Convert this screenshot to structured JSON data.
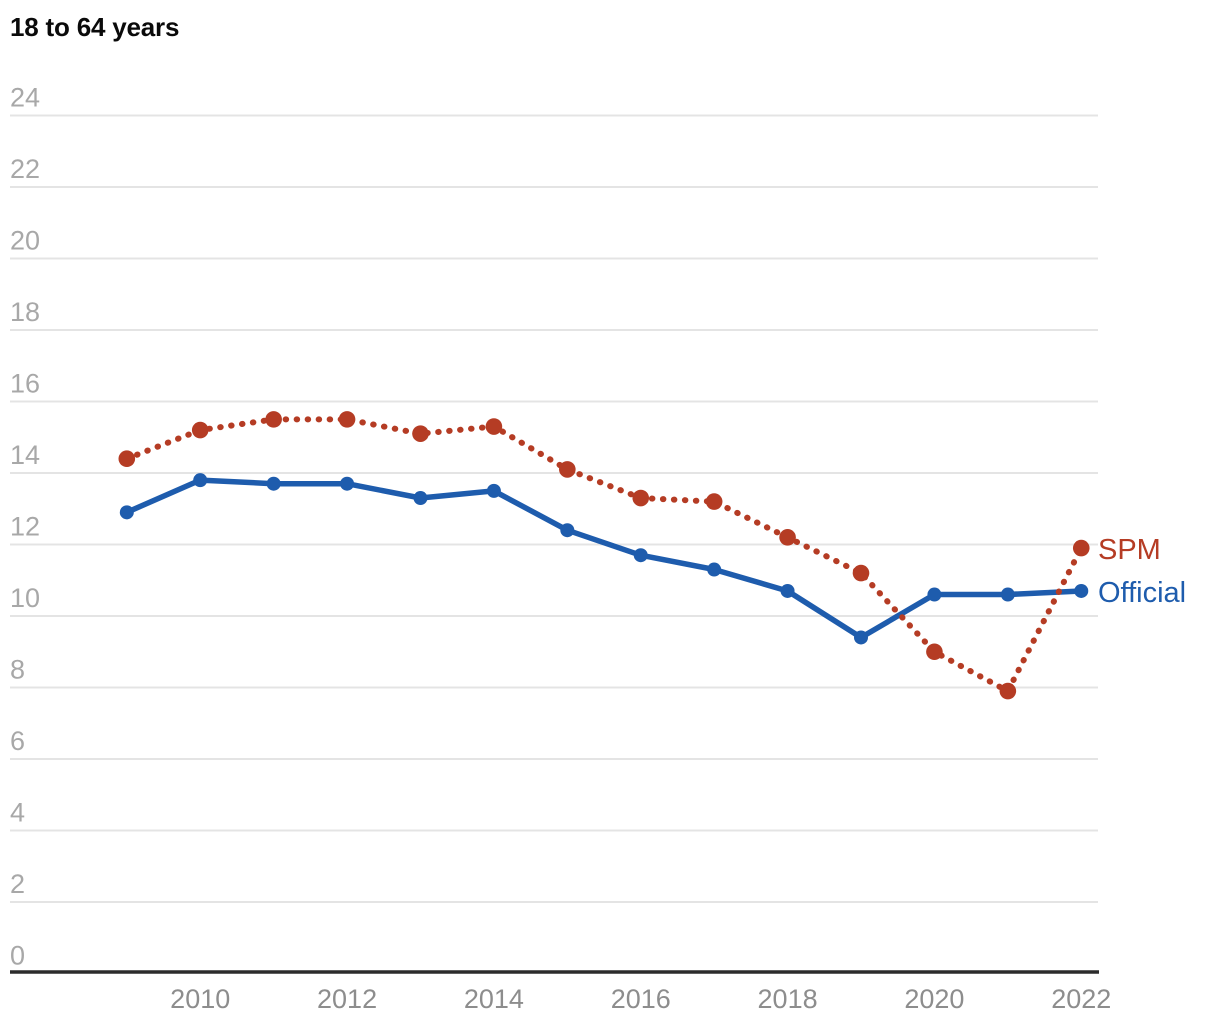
{
  "title": "18 to 64 years",
  "colors": {
    "spm": "#b53c24",
    "official": "#1e5cad",
    "grid": "#e4e4e4",
    "axis": "#2c2c2c",
    "y_tick_label": "#a8a8a8",
    "x_tick_label": "#8d8d8d",
    "background": "#ffffff"
  },
  "chart_data": {
    "type": "line",
    "title": "18 to 64 years",
    "x": [
      2009,
      2010,
      2011,
      2012,
      2013,
      2014,
      2015,
      2016,
      2017,
      2018,
      2019,
      2020,
      2021,
      2022
    ],
    "series": [
      {
        "name": "SPM",
        "style": "dotted",
        "color": "#b53c24",
        "values": [
          14.4,
          15.2,
          15.5,
          15.5,
          15.1,
          15.3,
          14.1,
          13.3,
          13.2,
          12.2,
          11.2,
          9.0,
          7.9,
          11.9
        ]
      },
      {
        "name": "Official",
        "style": "solid",
        "color": "#1e5cad",
        "values": [
          12.9,
          13.8,
          13.7,
          13.7,
          13.3,
          13.5,
          12.4,
          11.7,
          11.3,
          10.7,
          9.4,
          10.6,
          10.6,
          10.7
        ]
      }
    ],
    "xlabel": "",
    "ylabel": "",
    "ylim": [
      0,
      24
    ],
    "y_ticks": [
      0,
      2,
      4,
      6,
      8,
      10,
      12,
      14,
      16,
      18,
      20,
      22,
      24
    ],
    "x_ticks": [
      2010,
      2012,
      2014,
      2016,
      2018,
      2020,
      2022
    ],
    "grid": true,
    "legend_position": "inline-right-of-last-point"
  }
}
